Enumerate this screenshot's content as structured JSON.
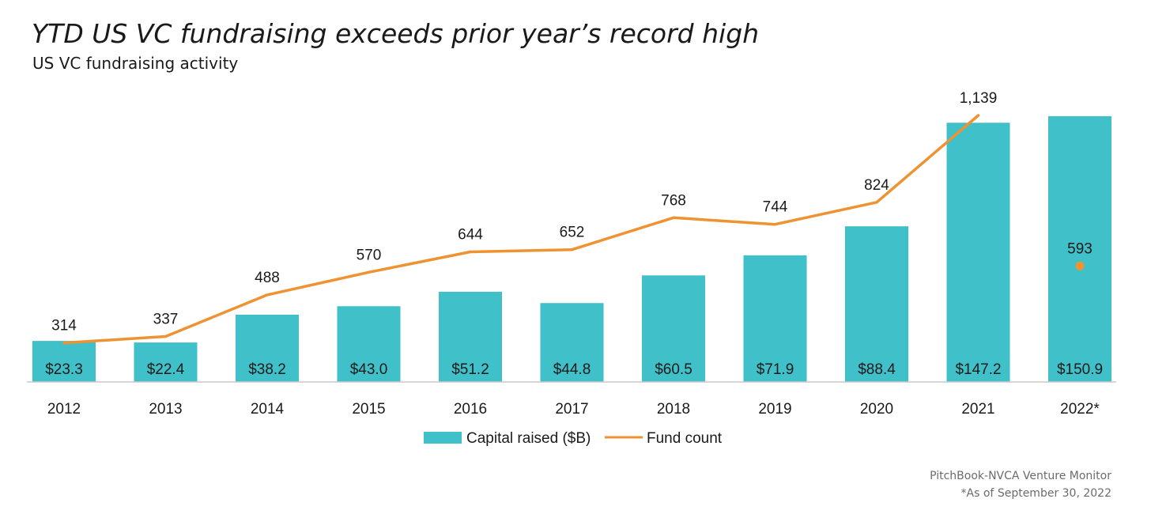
{
  "colors": {
    "bar": "#40c0c9",
    "line": "#ee9232",
    "axis": "#c8c8c8",
    "text": "#1a1a1a",
    "source": "#6b6b6b"
  },
  "chart_data": {
    "type": "bar",
    "title": "YTD US VC fundraising exceeds prior year’s record high",
    "subtitle": "US VC fundraising activity",
    "categories": [
      "2012",
      "2013",
      "2014",
      "2015",
      "2016",
      "2017",
      "2018",
      "2019",
      "2020",
      "2021",
      "2022*"
    ],
    "series": [
      {
        "name": "Capital raised ($B)",
        "kind": "bar",
        "values": [
          23.3,
          22.4,
          38.2,
          43.0,
          51.2,
          44.8,
          60.5,
          71.9,
          88.4,
          147.2,
          150.9
        ],
        "labels": [
          "$23.3",
          "$22.4",
          "$38.2",
          "$43.0",
          "$51.2",
          "$44.8",
          "$60.5",
          "$71.9",
          "$88.4",
          "$147.2",
          "$150.9"
        ]
      },
      {
        "name": "Fund count",
        "kind": "line",
        "values": [
          314,
          337,
          488,
          570,
          644,
          652,
          768,
          744,
          824,
          1139,
          593
        ],
        "labels": [
          "314",
          "337",
          "488",
          "570",
          "644",
          "652",
          "768",
          "744",
          "824",
          "1,139",
          "593"
        ],
        "line_break_before_last": true
      }
    ],
    "bar_ylim": [
      0,
      150.9
    ],
    "line_ylim": [
      0,
      1139
    ],
    "grid": false,
    "legend_position": "bottom-center"
  },
  "source": {
    "line1": "PitchBook-NVCA Venture Monitor",
    "line2": "*As of September 30, 2022"
  }
}
